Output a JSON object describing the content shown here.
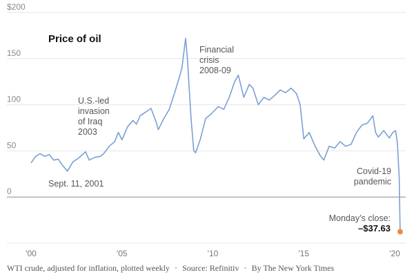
{
  "chart_data": {
    "type": "line",
    "title": "Price of oil",
    "xlabel": "",
    "ylabel": "",
    "xlim": [
      2000,
      2020.4
    ],
    "ylim": [
      -50,
      200
    ],
    "yticks": [
      {
        "value": 200,
        "label": "$200"
      },
      {
        "value": 150,
        "label": "150"
      },
      {
        "value": 100,
        "label": "100"
      },
      {
        "value": 50,
        "label": "50"
      },
      {
        "value": 0,
        "label": "0"
      }
    ],
    "xticks": [
      {
        "value": 2000,
        "label": "'00"
      },
      {
        "value": 2005,
        "label": "'05"
      },
      {
        "value": 2010,
        "label": "'10"
      },
      {
        "value": 2015,
        "label": "'15"
      },
      {
        "value": 2020,
        "label": "'20"
      }
    ],
    "series": [
      {
        "name": "WTI crude, adjusted for inflation",
        "color": "#7a9fd4",
        "x": [
          2000.0,
          2000.25,
          2000.5,
          2000.75,
          2001.0,
          2001.25,
          2001.5,
          2001.7,
          2002.0,
          2002.3,
          2002.6,
          2003.0,
          2003.2,
          2003.5,
          2003.8,
          2004.0,
          2004.3,
          2004.6,
          2004.8,
          2005.0,
          2005.3,
          2005.6,
          2005.8,
          2006.0,
          2006.3,
          2006.6,
          2006.9,
          2007.0,
          2007.3,
          2007.6,
          2007.9,
          2008.1,
          2008.3,
          2008.5,
          2008.6,
          2008.8,
          2008.95,
          2009.05,
          2009.3,
          2009.6,
          2009.9,
          2010.3,
          2010.6,
          2010.9,
          2011.2,
          2011.4,
          2011.7,
          2012.0,
          2012.2,
          2012.5,
          2012.8,
          2013.1,
          2013.4,
          2013.7,
          2014.0,
          2014.3,
          2014.6,
          2014.8,
          2015.0,
          2015.3,
          2015.6,
          2015.9,
          2016.1,
          2016.4,
          2016.7,
          2017.0,
          2017.3,
          2017.6,
          2017.9,
          2018.2,
          2018.5,
          2018.8,
          2018.95,
          2019.1,
          2019.4,
          2019.7,
          2019.9,
          2020.05,
          2020.15,
          2020.25,
          2020.3
        ],
        "y": [
          37,
          44,
          47,
          44,
          46,
          40,
          41,
          35,
          28,
          38,
          42,
          49,
          40,
          43,
          44,
          47,
          55,
          60,
          70,
          62,
          76,
          83,
          79,
          88,
          92,
          96,
          80,
          73,
          85,
          95,
          113,
          126,
          140,
          172,
          150,
          85,
          50,
          48,
          62,
          85,
          90,
          98,
          95,
          108,
          125,
          132,
          108,
          122,
          118,
          100,
          108,
          105,
          110,
          116,
          113,
          118,
          112,
          100,
          63,
          70,
          56,
          45,
          40,
          55,
          53,
          60,
          55,
          57,
          70,
          78,
          80,
          88,
          70,
          65,
          72,
          64,
          70,
          72,
          58,
          20,
          -37.63
        ]
      }
    ],
    "end_point": {
      "x": 2020.3,
      "y": -37.63,
      "color": "#ee8a43"
    },
    "annotations": {
      "sept11": {
        "text": "Sept. 11, 2001"
      },
      "iraq": {
        "lines": [
          "U.S.-led",
          "invasion",
          "of Iraq",
          "2003"
        ]
      },
      "crisis": {
        "lines": [
          "Financial",
          "crisis",
          "2008-09"
        ]
      },
      "covid": {
        "lines": [
          "Covid-19",
          "pandemic"
        ]
      },
      "close": {
        "label": "Monday’s close:",
        "value": "–$37.63"
      }
    }
  },
  "footer": {
    "caption": "WTI crude, adjusted for inflation, plotted weekly",
    "separator": "•",
    "source": "Source: Refinitiv",
    "credit": "By The New York Times"
  }
}
